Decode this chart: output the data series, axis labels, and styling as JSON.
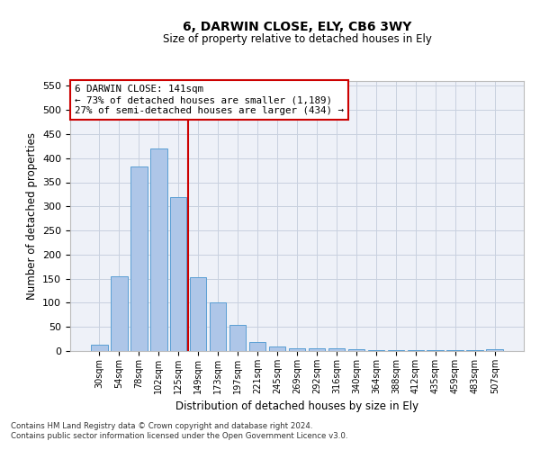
{
  "title": "6, DARWIN CLOSE, ELY, CB6 3WY",
  "subtitle": "Size of property relative to detached houses in Ely",
  "xlabel": "Distribution of detached houses by size in Ely",
  "ylabel": "Number of detached properties",
  "footnote1": "Contains HM Land Registry data © Crown copyright and database right 2024.",
  "footnote2": "Contains public sector information licensed under the Open Government Licence v3.0.",
  "annotation_title": "6 DARWIN CLOSE: 141sqm",
  "annotation_line2": "← 73% of detached houses are smaller (1,189)",
  "annotation_line3": "27% of semi-detached houses are larger (434) →",
  "categories": [
    "30sqm",
    "54sqm",
    "78sqm",
    "102sqm",
    "125sqm",
    "149sqm",
    "173sqm",
    "197sqm",
    "221sqm",
    "245sqm",
    "269sqm",
    "292sqm",
    "316sqm",
    "340sqm",
    "364sqm",
    "388sqm",
    "412sqm",
    "435sqm",
    "459sqm",
    "483sqm",
    "507sqm"
  ],
  "values": [
    13,
    155,
    382,
    420,
    320,
    153,
    100,
    55,
    18,
    10,
    5,
    5,
    5,
    3,
    2,
    2,
    2,
    2,
    2,
    2,
    3
  ],
  "bar_color": "#aec6e8",
  "bar_edge_color": "#5a9fd4",
  "vline_x_index": 4.5,
  "vline_color": "#cc0000",
  "ylim": [
    0,
    560
  ],
  "yticks": [
    0,
    50,
    100,
    150,
    200,
    250,
    300,
    350,
    400,
    450,
    500,
    550
  ],
  "annotation_box_color": "#cc0000",
  "bg_color": "#eef1f8",
  "grid_color": "#c8d0df"
}
